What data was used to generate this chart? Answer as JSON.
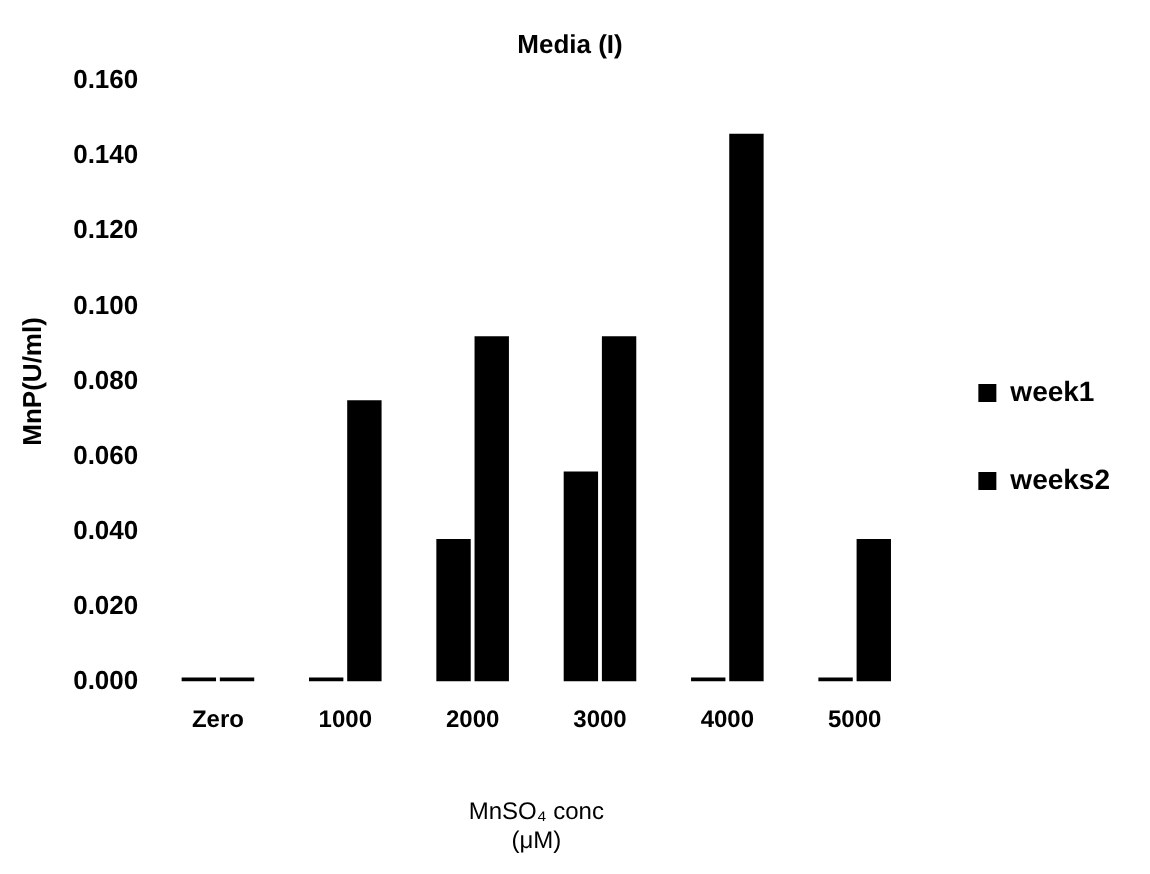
{
  "chart_data": {
    "type": "bar",
    "title": "Media (I)",
    "xlabel": "MnSO₄ conc\n(μM)",
    "ylabel": "MnP(U/ml)",
    "categories": [
      "Zero",
      "1000",
      "2000",
      "3000",
      "4000",
      "5000"
    ],
    "series": [
      {
        "name": "week1",
        "color": "#000000",
        "values": [
          0,
          0,
          0.038,
          0.056,
          0,
          0
        ]
      },
      {
        "name": "weeks2",
        "color": "#000000",
        "values": [
          0,
          0.075,
          0.092,
          0.092,
          0.146,
          0.038
        ]
      }
    ],
    "ylim": [
      0,
      0.16
    ],
    "yticks": [
      {
        "value": 0,
        "label": "0.000"
      },
      {
        "value": 0.02,
        "label": "0.020"
      },
      {
        "value": 0.04,
        "label": "0.040"
      },
      {
        "value": 0.06,
        "label": "0.060"
      },
      {
        "value": 0.08,
        "label": "0.080"
      },
      {
        "value": 0.1,
        "label": "0.100"
      },
      {
        "value": 0.12,
        "label": "0.120"
      },
      {
        "value": 0.14,
        "label": "0.140"
      },
      {
        "value": 0.16,
        "label": "0.160"
      }
    ],
    "grid": false,
    "legend": "right"
  }
}
